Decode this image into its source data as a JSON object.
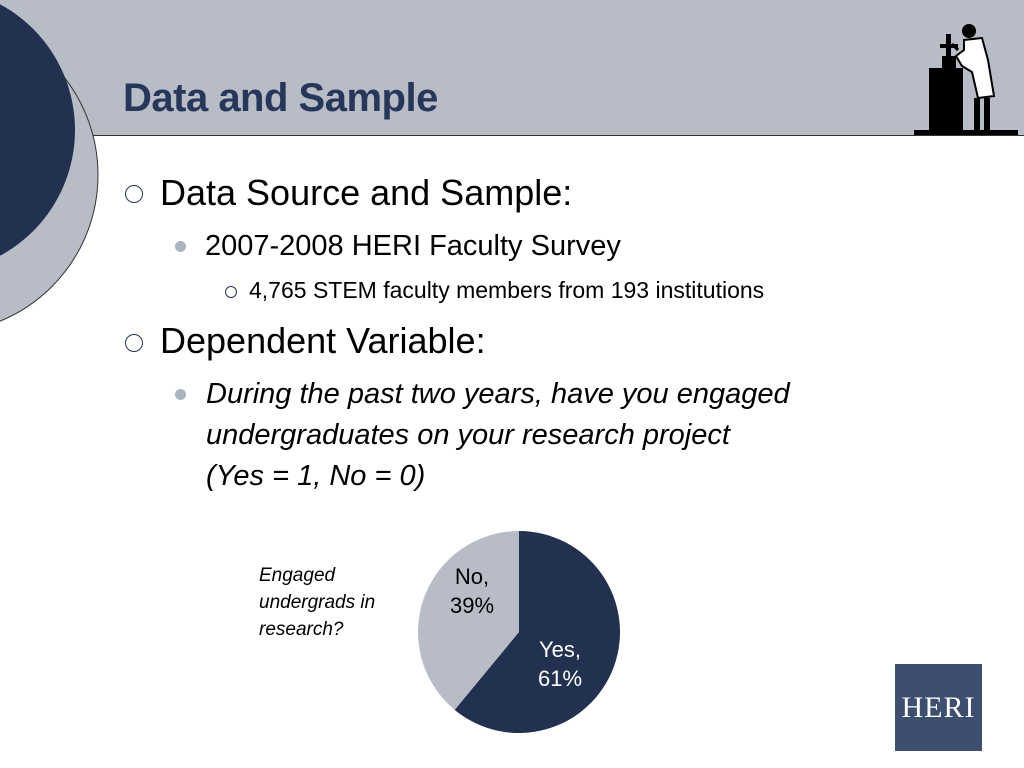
{
  "slide": {
    "title": "Data and Sample"
  },
  "bullets": {
    "data_source": "Data Source and Sample:",
    "survey": "2007-2008 HERI Faculty Survey",
    "sample": "4,765 STEM faculty members from 193 institutions",
    "dependent_variable": "Dependent Variable:",
    "question_line1": "During the past two years, have you engaged",
    "question_line2": "undergraduates on your research project",
    "question_line3": "(Yes = 1, No = 0)"
  },
  "chart_caption": {
    "line1": "Engaged",
    "line2": "undergrads in",
    "line3": "research?"
  },
  "chart_data": {
    "type": "pie",
    "categories": [
      "Yes",
      "No"
    ],
    "values": [
      61,
      39
    ],
    "labels": [
      {
        "line1": "Yes,",
        "line2": "61%"
      },
      {
        "line1": "No,",
        "line2": "39%"
      }
    ],
    "colors": [
      "#22314f",
      "#b7bcc6"
    ]
  },
  "logo": {
    "text": "HERI"
  },
  "colors": {
    "header_band": "#b7bcc6",
    "title": "#26375a",
    "deco_dark": "#22314f"
  }
}
